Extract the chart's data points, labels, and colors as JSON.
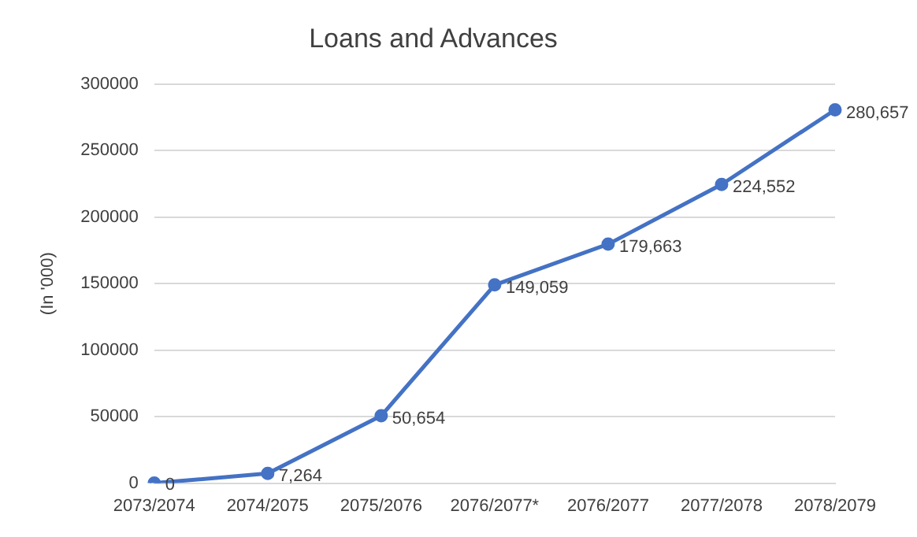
{
  "chart_data": {
    "type": "line",
    "title": "Loans and Advances",
    "ylabel": "(In '000)",
    "categories": [
      "2073/2074",
      "2074/2075",
      "2075/2076",
      "2076/2077*",
      "2076/2077",
      "2077/2078",
      "2078/2079"
    ],
    "series": [
      {
        "color": "#4472c4",
        "values": [
          0,
          7264,
          50654,
          149059,
          179663,
          224552,
          280657
        ],
        "value_labels": [
          "0",
          "7,264",
          "50,654",
          "149,059",
          "179,663",
          "224,552",
          "280,657"
        ]
      }
    ],
    "ylim": [
      0,
      300000
    ],
    "yticks": [
      0,
      50000,
      100000,
      150000,
      200000,
      250000,
      300000
    ],
    "grid": "y",
    "legend": false,
    "marker": "circle",
    "line_style": "solid"
  }
}
